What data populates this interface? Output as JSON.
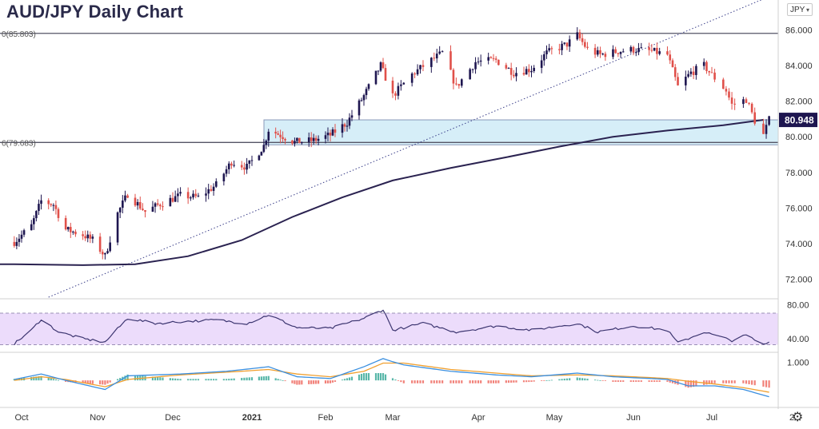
{
  "title": "AUD/JPY Daily Chart",
  "currency_selector": {
    "value": "JPY",
    "icon": "chevron-down-icon"
  },
  "settings_icon": "gear-icon",
  "colors": {
    "up": "#1e1650",
    "down": "#e0504a",
    "ma": "#2a2250",
    "zone_fill": "#d6eef8",
    "rsi_band": "#ecdcfb",
    "macd_blue": "#3a8fe0",
    "macd_orange": "#f0a030",
    "hist_green": "#3caa9a",
    "hist_red": "#ef6b62"
  },
  "chart_data": [
    {
      "type": "candlestick",
      "title": "AUD/JPY Daily Chart",
      "ylim": [
        71,
        86.6
      ],
      "y_ticks": [
        "86.000",
        "84.000",
        "82.000",
        "80.000",
        "78.000",
        "76.000",
        "74.000",
        "72.000"
      ],
      "x_ticks": [
        "Oct",
        "Nov",
        "Dec",
        "2021",
        "Feb",
        "Mar",
        "Apr",
        "May",
        "Jun",
        "Jul",
        "2"
      ],
      "last_price": "80.948",
      "levels": [
        {
          "label": "0(85.803)",
          "value": 85.803
        },
        {
          "label": "6(79.683)",
          "value": 79.683
        }
      ],
      "zone": {
        "top": 80.95,
        "bottom": 79.55
      },
      "trendline": {
        "from": [
          "2020-10-12",
          71.0
        ],
        "to": [
          "2021-07-23",
          88.0
        ]
      },
      "moving_average": [
        [
          "2020-09-28",
          72.85
        ],
        [
          "2020-10-26",
          72.8
        ],
        [
          "2020-11-16",
          72.85
        ],
        [
          "2020-12-07",
          73.3
        ],
        [
          "2020-12-28",
          74.2
        ],
        [
          "2021-01-18",
          75.5
        ],
        [
          "2021-02-08",
          76.6
        ],
        [
          "2021-03-01",
          77.55
        ],
        [
          "2021-03-22",
          78.25
        ],
        [
          "2021-04-12",
          78.85
        ],
        [
          "2021-05-03",
          79.45
        ],
        [
          "2021-05-24",
          80.0
        ],
        [
          "2021-06-14",
          80.35
        ],
        [
          "2021-07-05",
          80.65
        ],
        [
          "2021-07-19",
          80.95
        ]
      ],
      "price_path": [
        [
          "2020-09-28",
          74.1
        ],
        [
          "2020-10-05",
          75.0
        ],
        [
          "2020-10-09",
          76.4
        ],
        [
          "2020-10-14",
          76.2
        ],
        [
          "2020-10-19",
          74.8
        ],
        [
          "2020-10-26",
          74.5
        ],
        [
          "2020-10-30",
          74.2
        ],
        [
          "2020-11-04",
          73.3
        ],
        [
          "2020-11-09",
          75.7
        ],
        [
          "2020-11-13",
          76.8
        ],
        [
          "2020-11-20",
          75.8
        ],
        [
          "2020-11-27",
          76.3
        ],
        [
          "2020-12-04",
          76.7
        ],
        [
          "2020-12-11",
          76.6
        ],
        [
          "2020-12-18",
          77.3
        ],
        [
          "2020-12-24",
          78.6
        ],
        [
          "2020-12-30",
          78.3
        ],
        [
          "2021-01-06",
          79.5
        ],
        [
          "2021-01-08",
          80.4
        ],
        [
          "2021-01-13",
          80.1
        ],
        [
          "2021-01-19",
          79.7
        ],
        [
          "2021-01-27",
          79.8
        ],
        [
          "2021-02-03",
          80.1
        ],
        [
          "2021-02-10",
          80.8
        ],
        [
          "2021-02-17",
          82.3
        ],
        [
          "2021-02-24",
          84.0
        ],
        [
          "2021-03-01",
          82.3
        ],
        [
          "2021-03-08",
          83.5
        ],
        [
          "2021-03-15",
          84.3
        ],
        [
          "2021-03-19",
          84.7
        ],
        [
          "2021-03-24",
          82.8
        ],
        [
          "2021-03-31",
          84.2
        ],
        [
          "2021-04-08",
          84.3
        ],
        [
          "2021-04-15",
          83.6
        ],
        [
          "2021-04-22",
          83.8
        ],
        [
          "2021-04-28",
          84.7
        ],
        [
          "2021-05-06",
          85.2
        ],
        [
          "2021-05-10",
          85.7
        ],
        [
          "2021-05-14",
          84.9
        ],
        [
          "2021-05-19",
          84.6
        ],
        [
          "2021-05-26",
          84.8
        ],
        [
          "2021-06-01",
          84.9
        ],
        [
          "2021-06-08",
          84.8
        ],
        [
          "2021-06-14",
          84.6
        ],
        [
          "2021-06-18",
          82.8
        ],
        [
          "2021-06-23",
          83.6
        ],
        [
          "2021-06-28",
          84.0
        ],
        [
          "2021-07-02",
          83.3
        ],
        [
          "2021-07-06",
          82.6
        ],
        [
          "2021-07-08",
          81.8
        ],
        [
          "2021-07-13",
          82.1
        ],
        [
          "2021-07-16",
          80.9
        ],
        [
          "2021-07-19",
          80.1
        ],
        [
          "2021-07-21",
          80.95
        ]
      ]
    },
    {
      "type": "line",
      "name": "RSI",
      "ylim": [
        25,
        85
      ],
      "y_ticks": [
        "80.00",
        "40.00"
      ],
      "band": [
        33,
        70
      ],
      "path": [
        [
          "2020-09-28",
          34
        ],
        [
          "2020-10-05",
          50
        ],
        [
          "2020-10-09",
          63
        ],
        [
          "2020-10-16",
          48
        ],
        [
          "2020-10-26",
          40
        ],
        [
          "2020-11-04",
          36
        ],
        [
          "2020-11-13",
          64
        ],
        [
          "2020-11-24",
          58
        ],
        [
          "2020-12-04",
          60
        ],
        [
          "2020-12-18",
          62
        ],
        [
          "2020-12-30",
          58
        ],
        [
          "2021-01-08",
          68
        ],
        [
          "2021-01-20",
          53
        ],
        [
          "2021-02-03",
          52
        ],
        [
          "2021-02-17",
          64
        ],
        [
          "2021-02-25",
          74
        ],
        [
          "2021-03-01",
          50
        ],
        [
          "2021-03-12",
          58
        ],
        [
          "2021-03-24",
          48
        ],
        [
          "2021-04-08",
          55
        ],
        [
          "2021-04-22",
          50
        ],
        [
          "2021-05-10",
          58
        ],
        [
          "2021-05-18",
          48
        ],
        [
          "2021-06-01",
          55
        ],
        [
          "2021-06-14",
          50
        ],
        [
          "2021-06-18",
          35
        ],
        [
          "2021-06-28",
          48
        ],
        [
          "2021-07-08",
          38
        ],
        [
          "2021-07-13",
          44
        ],
        [
          "2021-07-19",
          33
        ],
        [
          "2021-07-21",
          36
        ]
      ]
    },
    {
      "type": "line",
      "name": "MACD",
      "ylim": [
        -1.4,
        1.5
      ],
      "y_ticks": [
        "1.000"
      ],
      "macd": [
        [
          "2020-09-28",
          0.05
        ],
        [
          "2020-10-09",
          0.35
        ],
        [
          "2020-10-19",
          0.0
        ],
        [
          "2020-11-04",
          -0.5
        ],
        [
          "2020-11-13",
          0.25
        ],
        [
          "2020-12-04",
          0.35
        ],
        [
          "2020-12-22",
          0.5
        ],
        [
          "2021-01-08",
          0.75
        ],
        [
          "2021-01-20",
          0.2
        ],
        [
          "2021-02-03",
          0.1
        ],
        [
          "2021-02-17",
          0.75
        ],
        [
          "2021-02-25",
          1.2
        ],
        [
          "2021-03-05",
          0.85
        ],
        [
          "2021-03-22",
          0.5
        ],
        [
          "2021-04-08",
          0.3
        ],
        [
          "2021-04-22",
          0.2
        ],
        [
          "2021-05-10",
          0.4
        ],
        [
          "2021-05-24",
          0.2
        ],
        [
          "2021-06-08",
          0.1
        ],
        [
          "2021-06-14",
          0.05
        ],
        [
          "2021-06-22",
          -0.3
        ],
        [
          "2021-07-02",
          -0.3
        ],
        [
          "2021-07-12",
          -0.5
        ],
        [
          "2021-07-21",
          -0.9
        ]
      ],
      "signal": [
        [
          "2020-09-28",
          0.0
        ],
        [
          "2020-10-09",
          0.2
        ],
        [
          "2020-10-19",
          0.05
        ],
        [
          "2020-11-04",
          -0.35
        ],
        [
          "2020-11-13",
          0.05
        ],
        [
          "2020-12-04",
          0.3
        ],
        [
          "2020-12-22",
          0.45
        ],
        [
          "2021-01-08",
          0.6
        ],
        [
          "2021-01-20",
          0.35
        ],
        [
          "2021-02-03",
          0.2
        ],
        [
          "2021-02-17",
          0.5
        ],
        [
          "2021-02-25",
          0.95
        ],
        [
          "2021-03-05",
          0.95
        ],
        [
          "2021-03-22",
          0.6
        ],
        [
          "2021-04-08",
          0.4
        ],
        [
          "2021-04-22",
          0.25
        ],
        [
          "2021-05-10",
          0.3
        ],
        [
          "2021-05-24",
          0.25
        ],
        [
          "2021-06-08",
          0.15
        ],
        [
          "2021-06-14",
          0.1
        ],
        [
          "2021-06-22",
          -0.05
        ],
        [
          "2021-07-02",
          -0.2
        ],
        [
          "2021-07-12",
          -0.4
        ],
        [
          "2021-07-21",
          -0.65
        ]
      ]
    }
  ]
}
